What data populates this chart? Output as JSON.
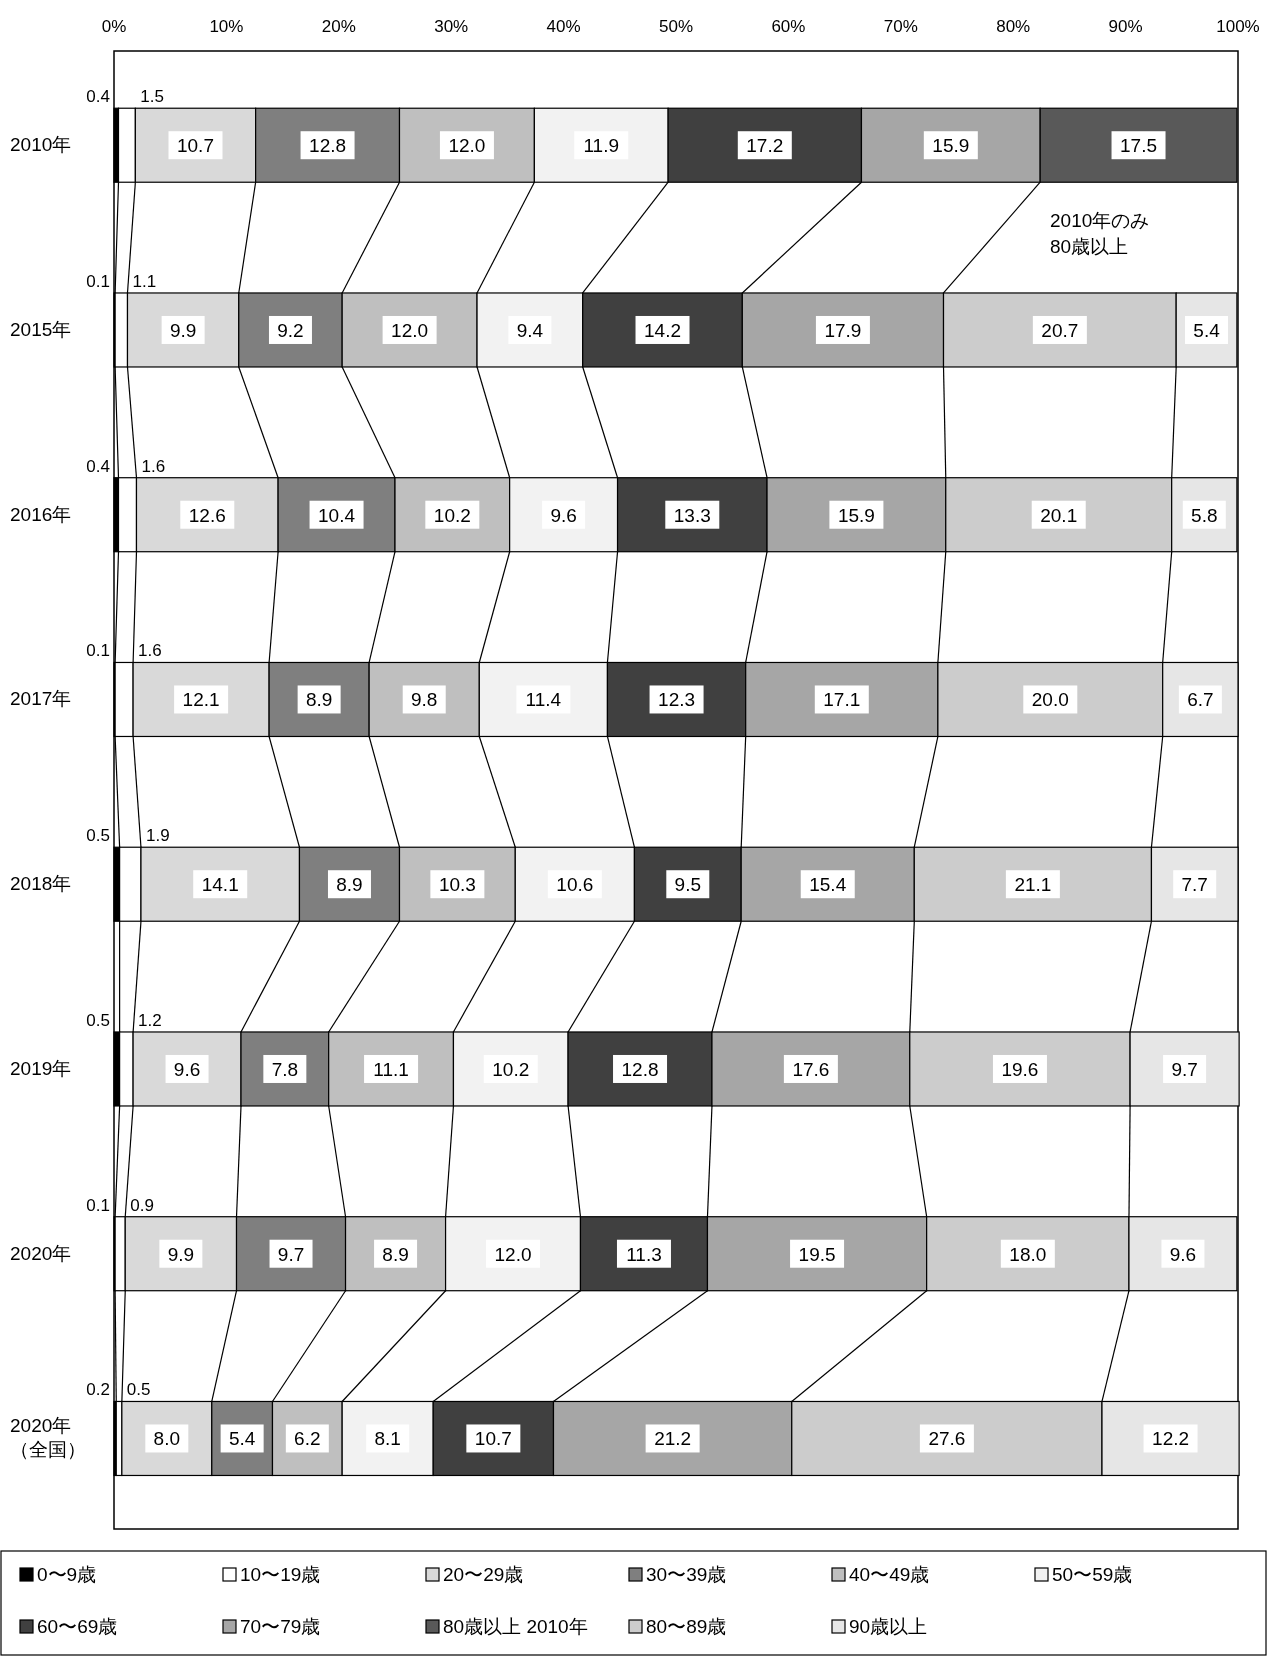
{
  "chart_data": {
    "type": "bar",
    "orientation": "horizontal",
    "stacked": true,
    "legend": "bottom",
    "categories": [
      "2010年",
      "2015年",
      "2016年",
      "2017年",
      "2018年",
      "2019年",
      "2020年",
      "2020年（全国）"
    ],
    "xlim": [
      0,
      100
    ],
    "xticks": [
      {
        "value": 0,
        "label": "0%"
      },
      {
        "value": 10,
        "label": "10%"
      },
      {
        "value": 20,
        "label": "20%"
      },
      {
        "value": 30,
        "label": "30%"
      },
      {
        "value": 40,
        "label": "40%"
      },
      {
        "value": 50,
        "label": "50%"
      },
      {
        "value": 60,
        "label": "60%"
      },
      {
        "value": 70,
        "label": "70%"
      },
      {
        "value": 80,
        "label": "80%"
      },
      {
        "value": 90,
        "label": "90%"
      },
      {
        "value": 100,
        "label": "100%"
      }
    ],
    "annotations": [
      "2010年のみ 80歳以上"
    ],
    "series": [
      {
        "name": "0〜9歳",
        "color": "#000000",
        "values": [
          0.4,
          0.1,
          0.4,
          0.1,
          0.5,
          0.5,
          0.1,
          0.2
        ],
        "value_labels": [
          "0.4",
          "0.1",
          "0.4",
          "0.1",
          "0.5",
          "0.5",
          "0.1",
          "0.2"
        ]
      },
      {
        "name": "10〜19歳",
        "color": "#ffffff",
        "values": [
          1.5,
          1.1,
          1.6,
          1.6,
          1.9,
          1.2,
          0.9,
          0.5
        ],
        "value_labels": [
          "1.5",
          "1.1",
          "1.6",
          "1.6",
          "1.9",
          "1.2",
          "0.9",
          "0.5"
        ]
      },
      {
        "name": "20〜29歳",
        "color": "#d9d9d9",
        "values": [
          10.7,
          9.9,
          12.6,
          12.1,
          14.1,
          9.6,
          9.9,
          8.0
        ],
        "value_labels": [
          "10.7",
          "9.9",
          "12.6",
          "12.1",
          "14.1",
          "9.6",
          "9.9",
          "8.0"
        ]
      },
      {
        "name": "30〜39歳",
        "color": "#7f7f7f",
        "values": [
          12.8,
          9.2,
          10.4,
          8.9,
          8.9,
          7.8,
          9.7,
          5.4
        ],
        "value_labels": [
          "12.8",
          "9.2",
          "10.4",
          "8.9",
          "8.9",
          "7.8",
          "9.7",
          "5.4"
        ]
      },
      {
        "name": "40〜49歳",
        "color": "#bfbfbf",
        "values": [
          12.0,
          12.0,
          10.2,
          9.8,
          10.3,
          11.1,
          8.9,
          6.2
        ],
        "value_labels": [
          "12.0",
          "12.0",
          "10.2",
          "9.8",
          "10.3",
          "11.1",
          "8.9",
          "6.2"
        ]
      },
      {
        "name": "50〜59歳",
        "color": "#f2f2f2",
        "values": [
          11.9,
          9.4,
          9.6,
          11.4,
          10.6,
          10.2,
          12.0,
          8.1
        ],
        "value_labels": [
          "11.9",
          "9.4",
          "9.6",
          "11.4",
          "10.6",
          "10.2",
          "12.0",
          "8.1"
        ]
      },
      {
        "name": "60〜69歳",
        "color": "#404040",
        "values": [
          17.2,
          14.2,
          13.3,
          12.3,
          9.5,
          12.8,
          11.3,
          10.7
        ],
        "value_labels": [
          "17.2",
          "14.2",
          "13.3",
          "12.3",
          "9.5",
          "12.8",
          "11.3",
          "10.7"
        ]
      },
      {
        "name": "70〜79歳",
        "color": "#a6a6a6",
        "values": [
          15.9,
          17.9,
          15.9,
          17.1,
          15.4,
          17.6,
          19.5,
          21.2
        ],
        "value_labels": [
          "15.9",
          "17.9",
          "15.9",
          "17.1",
          "15.4",
          "17.6",
          "19.5",
          "21.2"
        ]
      },
      {
        "name": "80歳以上 2010年",
        "color": "#595959",
        "values": [
          17.5,
          null,
          null,
          null,
          null,
          null,
          null,
          null
        ],
        "value_labels": [
          "17.5",
          null,
          null,
          null,
          null,
          null,
          null,
          null
        ]
      },
      {
        "name": "80〜89歳",
        "color": "#cccccc",
        "values": [
          null,
          20.7,
          20.1,
          20.0,
          21.1,
          19.6,
          18.0,
          27.6
        ],
        "value_labels": [
          null,
          "20.7",
          "20.1",
          "20.0",
          "21.1",
          "19.6",
          "18.0",
          "27.6"
        ]
      },
      {
        "name": "90歳以上",
        "color": "#e6e6e6",
        "values": [
          null,
          5.4,
          5.8,
          6.7,
          7.7,
          9.7,
          9.6,
          12.2
        ],
        "value_labels": [
          null,
          "5.4",
          "5.8",
          "6.7",
          "7.7",
          "9.7",
          "9.6",
          "12.2"
        ]
      }
    ]
  }
}
